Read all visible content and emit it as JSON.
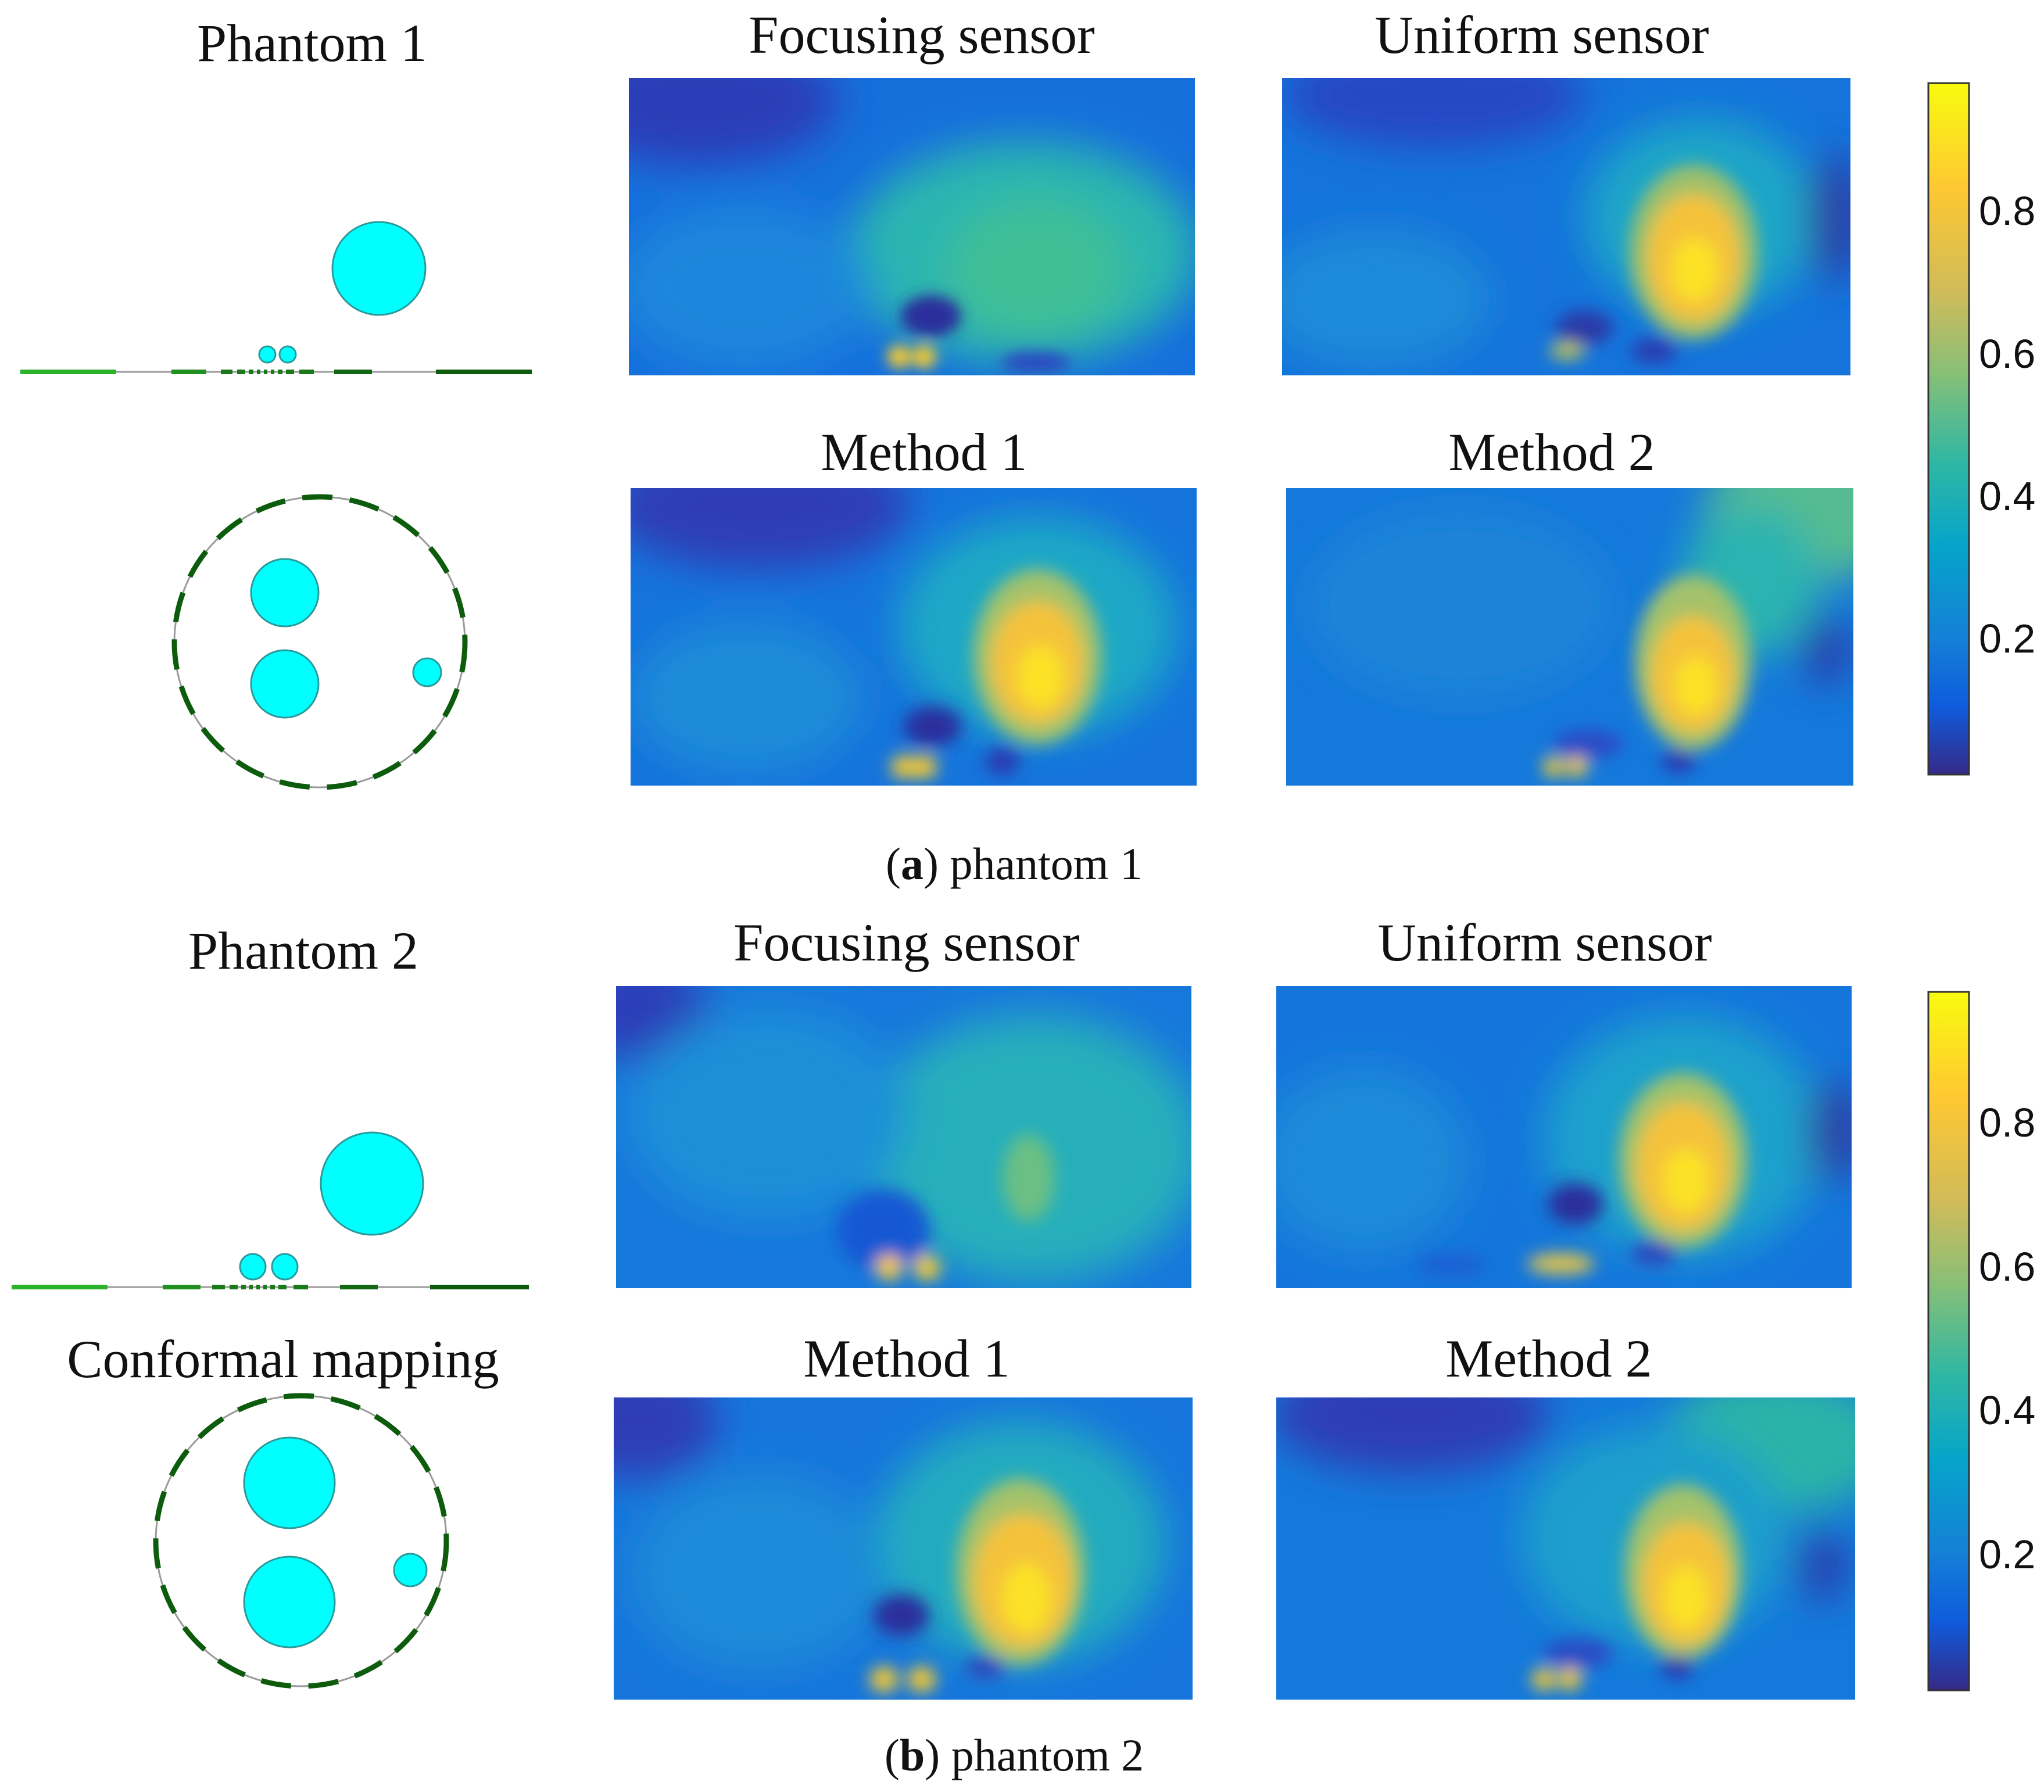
{
  "figure_a": {
    "phantom_title": "Phantom 1",
    "titles": [
      "Focusing sensor",
      "Uniform sensor",
      "Method 1",
      "Method 2"
    ],
    "caption_letter": "a",
    "caption_text": "phantom 1"
  },
  "figure_b": {
    "phantom_title": "Phantom 2",
    "mapping_title": "Conformal mapping",
    "titles": [
      "Focusing sensor",
      "Uniform sensor",
      "Method 1",
      "Method 2"
    ],
    "caption_letter": "b",
    "caption_text": "phantom 2"
  },
  "colorbar": {
    "ticks": [
      "0.2",
      "0.4",
      "0.6",
      "0.8"
    ],
    "tick_values": [
      0.2,
      0.4,
      0.6,
      0.8
    ],
    "range": [
      0,
      0.97
    ],
    "colormap": "parula",
    "colors": [
      "#352a87",
      "#0f5cdd",
      "#1481d6",
      "#06a4ca",
      "#2eb7a4",
      "#87bf77",
      "#d1bb59",
      "#fec832",
      "#f9fb0e"
    ]
  },
  "colors": {
    "inclusion": "#00ffff",
    "electrode_light": "#2bb32b",
    "electrode_dark": "#0d5c0d"
  }
}
